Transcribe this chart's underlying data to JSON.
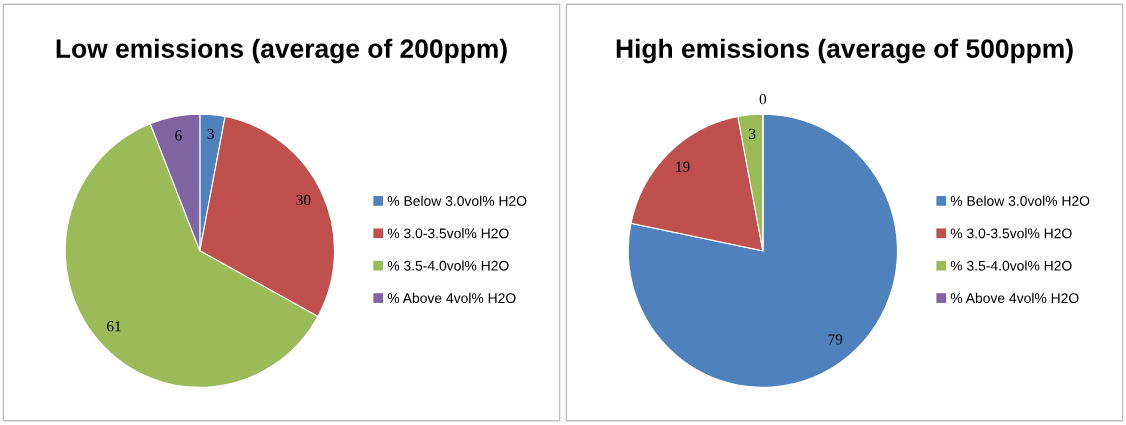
{
  "chart_data": [
    {
      "type": "pie",
      "title": "Low emissions (average of 200ppm)",
      "categories": [
        "% Below 3.0vol% H2O",
        "% 3.0-3.5vol% H2O",
        "% 3.5-4.0vol% H2O",
        "% Above 4vol% H2O"
      ],
      "values": [
        3,
        30,
        61,
        6
      ],
      "value_labels": [
        "3",
        "30",
        "61",
        "6"
      ],
      "colors": [
        "#4f81bd",
        "#c0504d",
        "#9bbb59",
        "#8064a2"
      ],
      "legend": "right"
    },
    {
      "type": "pie",
      "title": "High emissions (average of 500ppm)",
      "categories": [
        "% Below 3.0vol% H2O",
        "% 3.0-3.5vol% H2O",
        "% 3.5-4.0vol% H2O",
        "% Above 4vol% H2O"
      ],
      "values": [
        79,
        19,
        3,
        0
      ],
      "value_labels": [
        "79",
        "19",
        "3",
        "0"
      ],
      "colors": [
        "#4f81bd",
        "#c0504d",
        "#9bbb59",
        "#8064a2"
      ],
      "legend": "right"
    }
  ]
}
